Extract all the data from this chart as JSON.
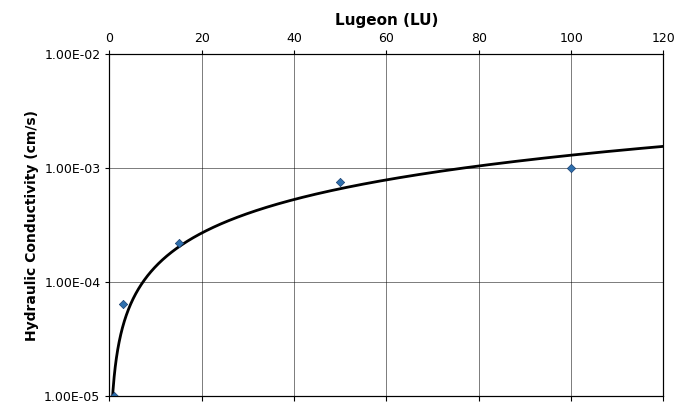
{
  "ylabel": "Hydraulic Conductivity (cm/s)",
  "xlabel_top": "Lugeon (LU)",
  "x_data": [
    1,
    3,
    15,
    50,
    100
  ],
  "y_data": [
    1e-05,
    6.5e-05,
    0.00022,
    0.00075,
    0.001
  ],
  "xlim": [
    0,
    120
  ],
  "x_ticks": [
    0,
    20,
    40,
    60,
    80,
    100,
    120
  ],
  "y_ticks": [
    1e-05,
    0.0001,
    0.001,
    0.01
  ],
  "y_tick_labels": [
    "1.00E-05",
    "1.00E-04",
    "1.00E-03",
    "1.00E-02"
  ],
  "curve_color": "#000000",
  "marker_color": "#1a3f6f",
  "marker_face": "#2e6fad",
  "background_color": "#ffffff",
  "grid_color": "#000000",
  "font_size_title": 11,
  "font_size_label": 10,
  "font_size_tick": 9
}
